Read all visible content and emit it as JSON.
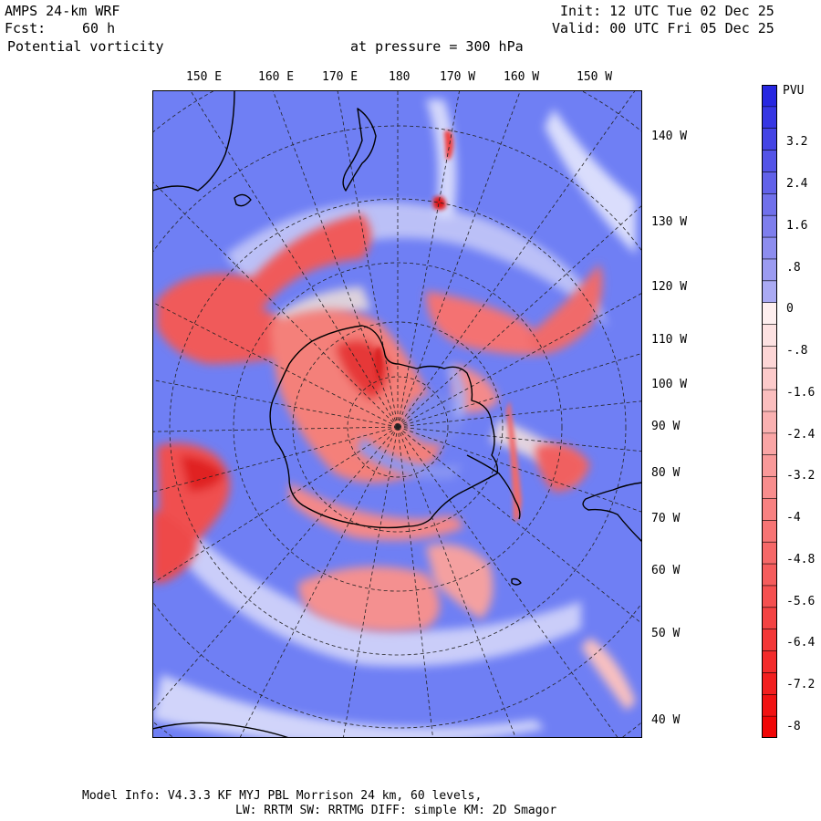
{
  "header": {
    "model": "AMPS 24-km WRF",
    "init": "Init: 12 UTC Tue 02 Dec 25",
    "fcst_label": "Fcst:",
    "fcst_value": "60 h",
    "valid": "Valid: 00 UTC Fri 05 Dec 25",
    "field": "Potential vorticity",
    "pressure": "at pressure =  300 hPa"
  },
  "longitude_labels_top": [
    "150 E",
    "160 E",
    "170 E",
    "180",
    "170 W",
    "160 W",
    "150 W"
  ],
  "longitude_labels_right": [
    "140 W",
    "130 W",
    "120 W",
    "110 W",
    "100 W",
    "90 W",
    "80 W",
    "70 W",
    "60 W",
    "50 W",
    "40 W"
  ],
  "colorbar": {
    "unit": "PVU",
    "tick_labels": [
      "3.2",
      "2.4",
      "1.6",
      ".8",
      "0",
      "-.8",
      "-1.6",
      "-2.4",
      "-3.2",
      "-4",
      "-4.8",
      "-5.6",
      "-6.4",
      "-7.2",
      "-8"
    ],
    "min": -8,
    "max": 4,
    "step": 0.4,
    "positive_color": "#2020e0",
    "negative_color": "#f00000"
  },
  "footer": {
    "line1": "Model Info: V4.3.3   KF      MYJ PBL  Morrison              24 km,   60 levels,",
    "line2": "LW: RRTM SW: RRTMG   DIFF: simple KM: 2D Smagor"
  }
}
